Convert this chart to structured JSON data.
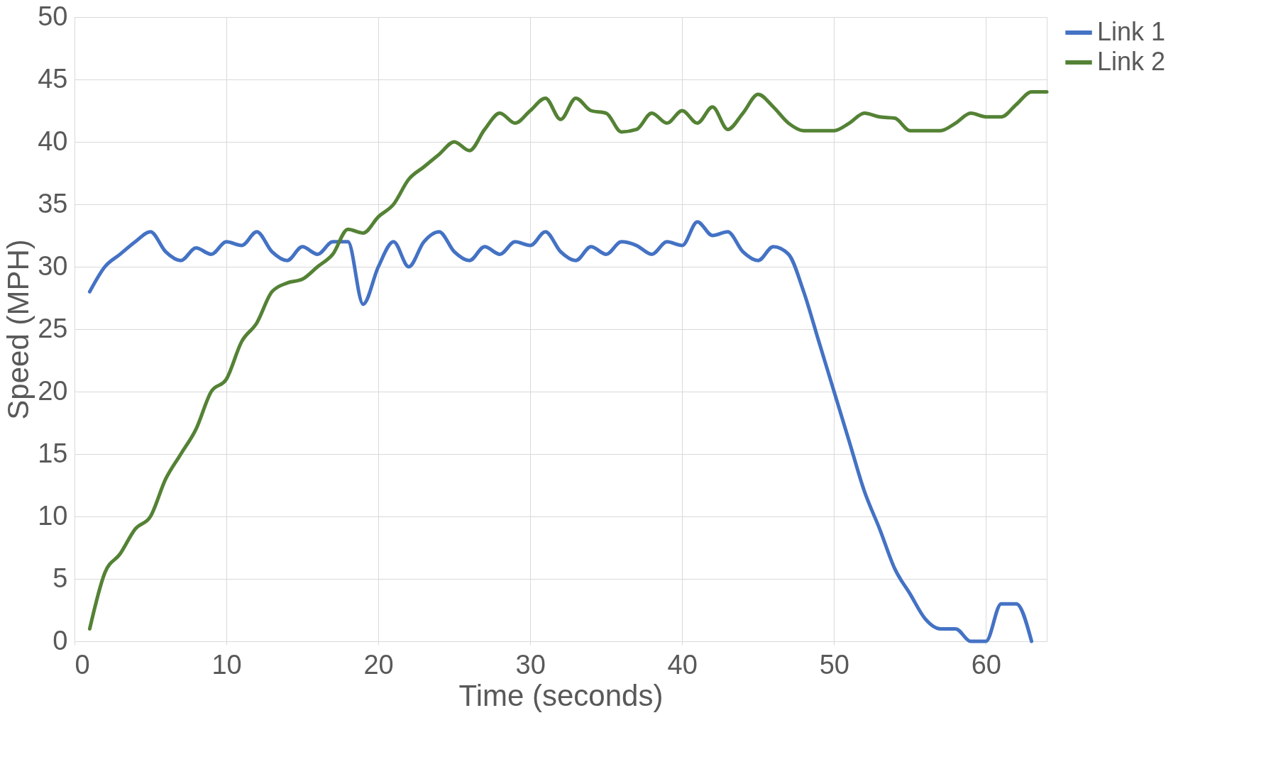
{
  "chart_data": {
    "type": "line",
    "xlabel": "Time (seconds)",
    "ylabel": "Speed (MPH)",
    "x": [
      1,
      2,
      3,
      4,
      5,
      6,
      7,
      8,
      9,
      10,
      11,
      12,
      13,
      14,
      15,
      16,
      17,
      18,
      19,
      20,
      21,
      22,
      23,
      24,
      25,
      26,
      27,
      28,
      29,
      30,
      31,
      32,
      33,
      34,
      35,
      36,
      37,
      38,
      39,
      40,
      41,
      42,
      43,
      44,
      45,
      46,
      47,
      48,
      49,
      50,
      51,
      52,
      53,
      54,
      55,
      56,
      57,
      58,
      59,
      60,
      61,
      62,
      63,
      64
    ],
    "series": [
      {
        "name": "Link 1",
        "color": "#4472c4",
        "values": [
          28,
          30,
          31,
          32,
          32.8,
          31.2,
          30.5,
          31.5,
          31,
          32,
          31.7,
          32.8,
          31.2,
          30.5,
          31.6,
          31,
          32,
          32,
          27,
          30,
          32,
          30,
          32,
          32.8,
          31.2,
          30.5,
          31.6,
          31,
          32,
          31.7,
          32.8,
          31.2,
          30.5,
          31.6,
          31,
          32,
          31.7,
          31,
          32,
          31.7,
          33.6,
          32.5,
          32.8,
          31.2,
          30.5,
          31.6,
          31,
          28,
          24,
          20,
          16,
          12,
          9,
          5.8,
          3.8,
          1.8,
          1,
          1,
          0,
          0,
          3,
          3,
          0,
          null
        ]
      },
      {
        "name": "Link 2",
        "color": "#548235",
        "values": [
          1,
          5.5,
          7,
          9,
          10,
          13,
          15,
          17,
          20,
          21,
          24,
          25.5,
          28,
          28.7,
          29,
          30,
          31,
          33,
          32.7,
          34,
          35,
          37,
          38,
          39,
          40,
          39.3,
          41,
          42.3,
          41.5,
          42.5,
          43.5,
          41.8,
          43.5,
          42.5,
          42.3,
          40.8,
          41,
          42.3,
          41.5,
          42.5,
          41.5,
          42.8,
          41,
          42.3,
          43.8,
          42.8,
          41.5,
          40.9,
          40.9,
          40.9,
          41.5,
          42.3,
          42,
          41.9,
          40.9,
          40.9,
          40.9,
          41.5,
          42.3,
          42,
          42,
          43,
          44,
          44
        ]
      }
    ],
    "xlim": [
      0,
      64
    ],
    "xticks": [
      0,
      10,
      20,
      30,
      40,
      50,
      60
    ],
    "ylim": [
      0,
      50
    ],
    "yticks": [
      0,
      5,
      10,
      15,
      20,
      25,
      30,
      35,
      40,
      45,
      50
    ],
    "grid": true,
    "legend": "right",
    "marker": "none",
    "line_style": "solid"
  }
}
